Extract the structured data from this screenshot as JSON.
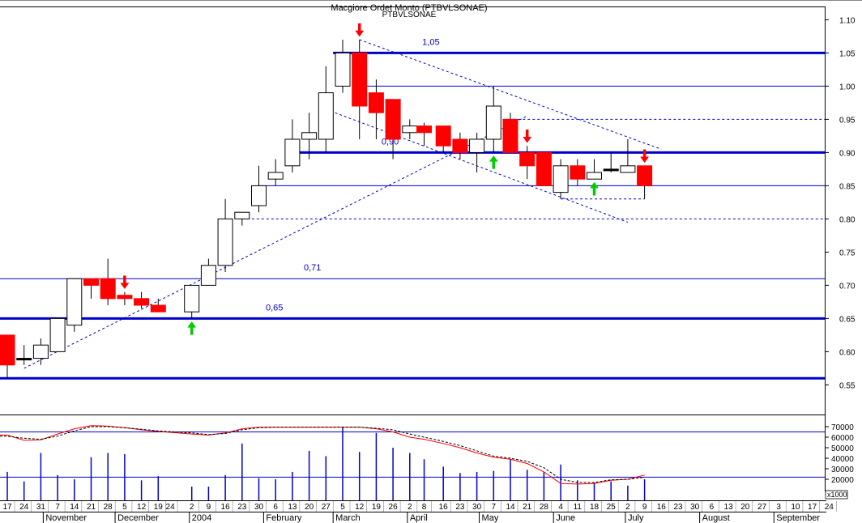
{
  "title": "Macgiore Ordet Monto (PTBVLSONAE)",
  "subtitle": "PTBVLSONAE",
  "colors": {
    "up_fill": "#ffffff",
    "down_fill": "#ff0000",
    "flat_fill": "#000000",
    "candle_outline": "#000000",
    "support_line": "#0000cc",
    "trend_line": "#0000cc",
    "volume_bar": "#0000cc",
    "avg_fast": "#ff0000",
    "avg_slow": "#000000",
    "arrow_up": "#00cc00",
    "arrow_down": "#ff0000",
    "level_label": "#0000cc"
  },
  "chart_data": [
    {
      "type": "candlestick",
      "title": "Macgiore Ordet Monto (PTBVLSONAE)",
      "ylim": [
        0.52,
        1.12
      ],
      "y_ticks": [
        "0.55",
        "0.60",
        "0.65",
        "0.70",
        "0.75",
        "0.80",
        "0.85",
        "0.90",
        "0.95",
        "1.00",
        "1.05",
        "1.10"
      ],
      "date_range": [
        "2003-10-17",
        "2004-09-24"
      ],
      "x_day_labels": [
        {
          "date": "2003-10-17",
          "label": "17"
        },
        {
          "date": "2003-10-24",
          "label": "24"
        },
        {
          "date": "2003-10-31",
          "label": "31"
        },
        {
          "date": "2003-11-07",
          "label": "7"
        },
        {
          "date": "2003-11-14",
          "label": "14"
        },
        {
          "date": "2003-11-21",
          "label": "21"
        },
        {
          "date": "2003-11-28",
          "label": "28"
        },
        {
          "date": "2003-12-05",
          "label": "5"
        },
        {
          "date": "2003-12-12",
          "label": "12"
        },
        {
          "date": "2003-12-19",
          "label": "19"
        },
        {
          "date": "2003-12-24",
          "label": "24"
        },
        {
          "date": "2004-01-02",
          "label": "2"
        },
        {
          "date": "2004-01-09",
          "label": "9"
        },
        {
          "date": "2004-01-16",
          "label": "16"
        },
        {
          "date": "2004-01-23",
          "label": "23"
        },
        {
          "date": "2004-01-30",
          "label": "30"
        },
        {
          "date": "2004-02-06",
          "label": "6"
        },
        {
          "date": "2004-02-13",
          "label": "13"
        },
        {
          "date": "2004-02-20",
          "label": "20"
        },
        {
          "date": "2004-02-27",
          "label": "27"
        },
        {
          "date": "2004-03-05",
          "label": "5"
        },
        {
          "date": "2004-03-12",
          "label": "12"
        },
        {
          "date": "2004-03-19",
          "label": "19"
        },
        {
          "date": "2004-03-26",
          "label": "26"
        },
        {
          "date": "2004-04-02",
          "label": "2"
        },
        {
          "date": "2004-04-08",
          "label": "8"
        },
        {
          "date": "2004-04-16",
          "label": "16"
        },
        {
          "date": "2004-04-23",
          "label": "23"
        },
        {
          "date": "2004-04-30",
          "label": "30"
        },
        {
          "date": "2004-05-07",
          "label": "7"
        },
        {
          "date": "2004-05-14",
          "label": "14"
        },
        {
          "date": "2004-05-21",
          "label": "21"
        },
        {
          "date": "2004-05-28",
          "label": "28"
        },
        {
          "date": "2004-06-04",
          "label": "4"
        },
        {
          "date": "2004-06-11",
          "label": "11"
        },
        {
          "date": "2004-06-18",
          "label": "18"
        },
        {
          "date": "2004-06-25",
          "label": "25"
        },
        {
          "date": "2004-07-02",
          "label": "2"
        },
        {
          "date": "2004-07-09",
          "label": "9"
        },
        {
          "date": "2004-07-16",
          "label": "16"
        },
        {
          "date": "2004-07-23",
          "label": "23"
        },
        {
          "date": "2004-07-30",
          "label": "30"
        },
        {
          "date": "2004-08-06",
          "label": "6"
        },
        {
          "date": "2004-08-13",
          "label": "13"
        },
        {
          "date": "2004-08-20",
          "label": "20"
        },
        {
          "date": "2004-08-27",
          "label": "27"
        },
        {
          "date": "2004-09-03",
          "label": "3"
        },
        {
          "date": "2004-09-10",
          "label": "10"
        },
        {
          "date": "2004-09-17",
          "label": "17"
        },
        {
          "date": "2004-09-24",
          "label": "24"
        }
      ],
      "x_month_labels": [
        {
          "date": "2003-11-01",
          "label": "November"
        },
        {
          "date": "2003-12-01",
          "label": "December"
        },
        {
          "date": "2004-01-01",
          "label": "2004"
        },
        {
          "date": "2004-02-01",
          "label": "February"
        },
        {
          "date": "2004-03-01",
          "label": "March"
        },
        {
          "date": "2004-04-01",
          "label": "April"
        },
        {
          "date": "2004-05-01",
          "label": "May"
        },
        {
          "date": "2004-06-01",
          "label": "June"
        },
        {
          "date": "2004-07-01",
          "label": "July"
        },
        {
          "date": "2004-08-01",
          "label": "August"
        },
        {
          "date": "2004-09-01",
          "label": "September"
        }
      ],
      "candles": [
        {
          "date": "2003-10-17",
          "open": 0.625,
          "high": 0.625,
          "low": 0.56,
          "close": 0.58
        },
        {
          "date": "2003-10-24",
          "open": 0.59,
          "high": 0.61,
          "low": 0.58,
          "close": 0.59
        },
        {
          "date": "2003-10-31",
          "open": 0.59,
          "high": 0.62,
          "low": 0.58,
          "close": 0.61
        },
        {
          "date": "2003-11-07",
          "open": 0.6,
          "high": 0.65,
          "low": 0.6,
          "close": 0.65
        },
        {
          "date": "2003-11-14",
          "open": 0.64,
          "high": 0.71,
          "low": 0.63,
          "close": 0.71
        },
        {
          "date": "2003-11-21",
          "open": 0.71,
          "high": 0.71,
          "low": 0.68,
          "close": 0.7
        },
        {
          "date": "2003-11-28",
          "open": 0.71,
          "high": 0.74,
          "low": 0.67,
          "close": 0.68
        },
        {
          "date": "2003-12-05",
          "open": 0.685,
          "high": 0.69,
          "low": 0.67,
          "close": 0.68
        },
        {
          "date": "2003-12-12",
          "open": 0.68,
          "high": 0.69,
          "low": 0.665,
          "close": 0.67
        },
        {
          "date": "2003-12-19",
          "open": 0.67,
          "high": 0.68,
          "low": 0.66,
          "close": 0.66
        },
        {
          "date": "2004-01-02",
          "open": 0.66,
          "high": 0.7,
          "low": 0.65,
          "close": 0.7
        },
        {
          "date": "2004-01-09",
          "open": 0.7,
          "high": 0.74,
          "low": 0.7,
          "close": 0.73
        },
        {
          "date": "2004-01-16",
          "open": 0.73,
          "high": 0.83,
          "low": 0.72,
          "close": 0.8
        },
        {
          "date": "2004-01-23",
          "open": 0.8,
          "high": 0.81,
          "low": 0.79,
          "close": 0.81
        },
        {
          "date": "2004-01-30",
          "open": 0.82,
          "high": 0.88,
          "low": 0.81,
          "close": 0.85
        },
        {
          "date": "2004-02-06",
          "open": 0.86,
          "high": 0.89,
          "low": 0.85,
          "close": 0.87
        },
        {
          "date": "2004-02-13",
          "open": 0.88,
          "high": 0.95,
          "low": 0.87,
          "close": 0.92
        },
        {
          "date": "2004-02-20",
          "open": 0.92,
          "high": 0.96,
          "low": 0.89,
          "close": 0.93
        },
        {
          "date": "2004-02-27",
          "open": 0.92,
          "high": 1.03,
          "low": 0.9,
          "close": 0.99
        },
        {
          "date": "2004-03-05",
          "open": 1.0,
          "high": 1.07,
          "low": 0.99,
          "close": 1.05
        },
        {
          "date": "2004-03-12",
          "open": 1.05,
          "high": 1.07,
          "low": 0.92,
          "close": 0.97
        },
        {
          "date": "2004-03-19",
          "open": 0.99,
          "high": 1.01,
          "low": 0.92,
          "close": 0.96
        },
        {
          "date": "2004-03-26",
          "open": 0.98,
          "high": 0.98,
          "low": 0.89,
          "close": 0.92
        },
        {
          "date": "2004-04-02",
          "open": 0.93,
          "high": 0.95,
          "low": 0.92,
          "close": 0.94
        },
        {
          "date": "2004-04-08",
          "open": 0.94,
          "high": 0.945,
          "low": 0.91,
          "close": 0.93
        },
        {
          "date": "2004-04-16",
          "open": 0.94,
          "high": 0.94,
          "low": 0.9,
          "close": 0.91
        },
        {
          "date": "2004-04-23",
          "open": 0.92,
          "high": 0.93,
          "low": 0.89,
          "close": 0.9
        },
        {
          "date": "2004-04-30",
          "open": 0.9,
          "high": 0.93,
          "low": 0.87,
          "close": 0.92
        },
        {
          "date": "2004-05-07",
          "open": 0.92,
          "high": 1.0,
          "low": 0.9,
          "close": 0.97
        },
        {
          "date": "2004-05-14",
          "open": 0.95,
          "high": 0.96,
          "low": 0.9,
          "close": 0.9
        },
        {
          "date": "2004-05-21",
          "open": 0.9,
          "high": 0.91,
          "low": 0.86,
          "close": 0.88
        },
        {
          "date": "2004-05-28",
          "open": 0.9,
          "high": 0.9,
          "low": 0.85,
          "close": 0.85
        },
        {
          "date": "2004-06-04",
          "open": 0.84,
          "high": 0.89,
          "low": 0.83,
          "close": 0.88
        },
        {
          "date": "2004-06-11",
          "open": 0.88,
          "high": 0.89,
          "low": 0.85,
          "close": 0.86
        },
        {
          "date": "2004-06-18",
          "open": 0.86,
          "high": 0.89,
          "low": 0.86,
          "close": 0.87
        },
        {
          "date": "2004-06-25",
          "open": 0.875,
          "high": 0.9,
          "low": 0.87,
          "close": 0.875
        },
        {
          "date": "2004-07-02",
          "open": 0.87,
          "high": 0.92,
          "low": 0.87,
          "close": 0.88
        },
        {
          "date": "2004-07-09",
          "open": 0.88,
          "high": 0.88,
          "low": 0.83,
          "close": 0.85
        }
      ],
      "horizontal_levels": [
        {
          "value": 1.05,
          "bold": true,
          "label": "1,05",
          "from_date": "2004-03-01"
        },
        {
          "value": 1.0,
          "bold": false,
          "from_date": "2004-03-12"
        },
        {
          "value": 0.95,
          "bold": false,
          "dashed": true,
          "from_date": "2004-05-07"
        },
        {
          "value": 0.9,
          "bold": true,
          "label": "0,90",
          "from_date": "2004-02-13"
        },
        {
          "value": 0.85,
          "bold": false,
          "from_date": "2004-01-30"
        },
        {
          "value": 0.8,
          "bold": false,
          "dashed": true,
          "from_date": "2004-01-23"
        },
        {
          "value": 0.71,
          "bold": false,
          "label": "0,71"
        },
        {
          "value": 0.65,
          "bold": true,
          "label": "0,65"
        },
        {
          "value": 0.56,
          "bold": true
        }
      ],
      "trend_lines": [
        {
          "from": {
            "date": "2003-10-24",
            "value": 0.575
          },
          "to": {
            "date": "2004-05-21",
            "value": 0.955
          },
          "dashed": true
        },
        {
          "from": {
            "date": "2004-03-12",
            "value": 1.07
          },
          "to": {
            "date": "2004-07-16",
            "value": 0.905
          },
          "dashed": true
        },
        {
          "from": {
            "date": "2004-02-27",
            "value": 0.965
          },
          "to": {
            "date": "2004-07-02",
            "value": 0.795
          },
          "dashed": true
        },
        {
          "from": {
            "date": "2004-06-04",
            "value": 0.83
          },
          "to": {
            "date": "2004-07-09",
            "value": 0.83
          },
          "dashed": true
        }
      ],
      "signals": [
        {
          "date": "2003-12-05",
          "direction": "down"
        },
        {
          "date": "2004-01-02",
          "direction": "up"
        },
        {
          "date": "2004-03-12",
          "direction": "down"
        },
        {
          "date": "2004-05-07",
          "direction": "up"
        },
        {
          "date": "2004-05-21",
          "direction": "down"
        },
        {
          "date": "2004-06-18",
          "direction": "up"
        },
        {
          "date": "2004-07-09",
          "direction": "down"
        }
      ]
    },
    {
      "type": "bar",
      "panel": "volume",
      "unit_label": "x1000",
      "ylim": [
        0,
        80000
      ],
      "y_ticks": [
        "20000",
        "30000",
        "40000",
        "50000",
        "60000",
        "70000"
      ],
      "reference_levels": [
        65000,
        22000
      ],
      "volumes": [
        {
          "date": "2003-10-17",
          "value": 27000
        },
        {
          "date": "2003-10-24",
          "value": 18000
        },
        {
          "date": "2003-10-31",
          "value": 45000
        },
        {
          "date": "2003-11-07",
          "value": 24000
        },
        {
          "date": "2003-11-14",
          "value": 20000
        },
        {
          "date": "2003-11-21",
          "value": 41000
        },
        {
          "date": "2003-11-28",
          "value": 45000
        },
        {
          "date": "2003-12-05",
          "value": 44000
        },
        {
          "date": "2003-12-12",
          "value": 19000
        },
        {
          "date": "2003-12-19",
          "value": 23000
        },
        {
          "date": "2004-01-02",
          "value": 13000
        },
        {
          "date": "2004-01-09",
          "value": 13000
        },
        {
          "date": "2004-01-16",
          "value": 24000
        },
        {
          "date": "2004-01-23",
          "value": 54000
        },
        {
          "date": "2004-01-30",
          "value": 21000
        },
        {
          "date": "2004-02-06",
          "value": 20000
        },
        {
          "date": "2004-02-13",
          "value": 27000
        },
        {
          "date": "2004-02-20",
          "value": 47000
        },
        {
          "date": "2004-02-27",
          "value": 42000
        },
        {
          "date": "2004-03-05",
          "value": 70000
        },
        {
          "date": "2004-03-12",
          "value": 46000
        },
        {
          "date": "2004-03-19",
          "value": 64000
        },
        {
          "date": "2004-03-26",
          "value": 50000
        },
        {
          "date": "2004-04-02",
          "value": 45000
        },
        {
          "date": "2004-04-08",
          "value": 39000
        },
        {
          "date": "2004-04-16",
          "value": 32000
        },
        {
          "date": "2004-04-23",
          "value": 26000
        },
        {
          "date": "2004-04-30",
          "value": 27000
        },
        {
          "date": "2004-05-07",
          "value": 28000
        },
        {
          "date": "2004-05-14",
          "value": 39000
        },
        {
          "date": "2004-05-21",
          "value": 29000
        },
        {
          "date": "2004-05-28",
          "value": 27000
        },
        {
          "date": "2004-06-04",
          "value": 34000
        },
        {
          "date": "2004-06-11",
          "value": 19000
        },
        {
          "date": "2004-06-18",
          "value": 17000
        },
        {
          "date": "2004-06-25",
          "value": 18000
        },
        {
          "date": "2004-07-02",
          "value": 14000
        },
        {
          "date": "2004-07-09",
          "value": 20000
        }
      ],
      "moving_averages": [
        {
          "color": "#ff0000",
          "values": [
            62000,
            57000,
            57500,
            63000,
            68000,
            71000,
            70500,
            69000,
            67000,
            65500,
            63000,
            62000,
            64000,
            68000,
            69500,
            69500,
            69500,
            69500,
            69500,
            69500,
            69500,
            68000,
            65000,
            60000,
            58000,
            54000,
            50000,
            45000,
            41000,
            39000,
            35000,
            27000,
            16000,
            15500,
            16000,
            19000,
            20000,
            24000
          ]
        },
        {
          "color": "#000000",
          "dashed": true,
          "values": [
            61000,
            59000,
            58000,
            61000,
            66000,
            70000,
            70000,
            69000,
            67500,
            66000,
            64000,
            62500,
            63500,
            67000,
            69000,
            69500,
            69500,
            69500,
            69500,
            69500,
            69500,
            68500,
            67000,
            63000,
            60000,
            56000,
            52000,
            47000,
            42000,
            40000,
            37000,
            31000,
            20000,
            17000,
            17000,
            19500,
            20000,
            22000
          ]
        }
      ]
    }
  ]
}
